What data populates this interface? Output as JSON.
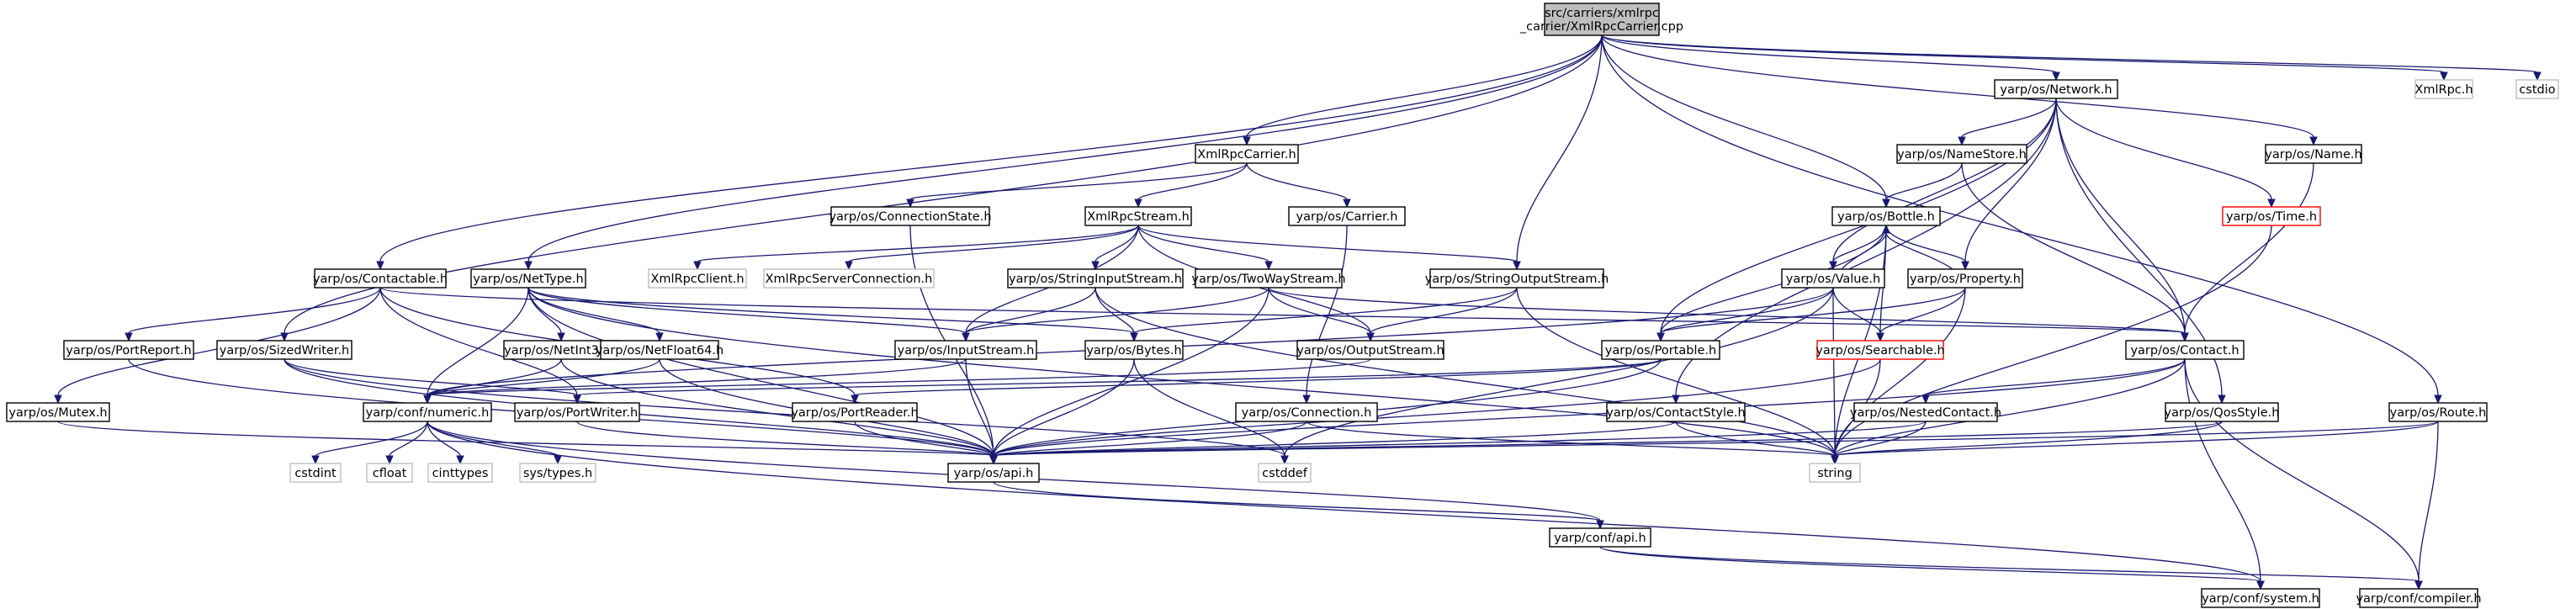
{
  "graph_title": "",
  "colors": {
    "edge": "#191970",
    "focus_fill": "#bfbfbf",
    "missing_border": "#bfbfbf",
    "truncated_border": "#ff0000"
  },
  "nodes": [
    {
      "id": "root",
      "label": "src/carriers/xmlrpc\n_carrier/XmlRpcCarrier.cpp",
      "kind": "focus"
    },
    {
      "id": "network",
      "label": "yarp/os/Network.h",
      "kind": "normal"
    },
    {
      "id": "xmlrpch",
      "label": "XmlRpc.h",
      "kind": "missing"
    },
    {
      "id": "cstdio",
      "label": "cstdio",
      "kind": "missing"
    },
    {
      "id": "xmlrpccarrier",
      "label": "XmlRpcCarrier.h",
      "kind": "normal"
    },
    {
      "id": "namestore",
      "label": "yarp/os/NameStore.h",
      "kind": "normal"
    },
    {
      "id": "name",
      "label": "yarp/os/Name.h",
      "kind": "normal"
    },
    {
      "id": "connstate",
      "label": "yarp/os/ConnectionState.h",
      "kind": "normal"
    },
    {
      "id": "xmlrpcstream",
      "label": "XmlRpcStream.h",
      "kind": "normal"
    },
    {
      "id": "carrier",
      "label": "yarp/os/Carrier.h",
      "kind": "normal"
    },
    {
      "id": "bottle",
      "label": "yarp/os/Bottle.h",
      "kind": "normal"
    },
    {
      "id": "time",
      "label": "yarp/os/Time.h",
      "kind": "truncated"
    },
    {
      "id": "contactable",
      "label": "yarp/os/Contactable.h",
      "kind": "normal"
    },
    {
      "id": "nettype",
      "label": "yarp/os/NetType.h",
      "kind": "normal"
    },
    {
      "id": "xmlrpcclient",
      "label": "XmlRpcClient.h",
      "kind": "missing"
    },
    {
      "id": "xmlrpcserverconn",
      "label": "XmlRpcServerConnection.h",
      "kind": "missing"
    },
    {
      "id": "stringinputstream",
      "label": "yarp/os/StringInputStream.h",
      "kind": "normal"
    },
    {
      "id": "twowaystream",
      "label": "yarp/os/TwoWayStream.h",
      "kind": "normal"
    },
    {
      "id": "stringoutputstream",
      "label": "yarp/os/StringOutputStream.h",
      "kind": "normal"
    },
    {
      "id": "value",
      "label": "yarp/os/Value.h",
      "kind": "normal"
    },
    {
      "id": "property",
      "label": "yarp/os/Property.h",
      "kind": "normal"
    },
    {
      "id": "portreport",
      "label": "yarp/os/PortReport.h",
      "kind": "normal"
    },
    {
      "id": "sizedwriter",
      "label": "yarp/os/SizedWriter.h",
      "kind": "normal"
    },
    {
      "id": "netint32",
      "label": "yarp/os/NetInt32.h",
      "kind": "normal"
    },
    {
      "id": "netfloat64",
      "label": "yarp/os/NetFloat64.h",
      "kind": "normal"
    },
    {
      "id": "inputstream",
      "label": "yarp/os/InputStream.h",
      "kind": "normal"
    },
    {
      "id": "bytes",
      "label": "yarp/os/Bytes.h",
      "kind": "normal"
    },
    {
      "id": "outputstream",
      "label": "yarp/os/OutputStream.h",
      "kind": "normal"
    },
    {
      "id": "portable",
      "label": "yarp/os/Portable.h",
      "kind": "normal"
    },
    {
      "id": "searchable",
      "label": "yarp/os/Searchable.h",
      "kind": "truncated"
    },
    {
      "id": "contact",
      "label": "yarp/os/Contact.h",
      "kind": "normal"
    },
    {
      "id": "mutex",
      "label": "yarp/os/Mutex.h",
      "kind": "normal"
    },
    {
      "id": "numeric",
      "label": "yarp/conf/numeric.h",
      "kind": "normal"
    },
    {
      "id": "portwriter",
      "label": "yarp/os/PortWriter.h",
      "kind": "normal"
    },
    {
      "id": "portreader",
      "label": "yarp/os/PortReader.h",
      "kind": "normal"
    },
    {
      "id": "connection",
      "label": "yarp/os/Connection.h",
      "kind": "normal"
    },
    {
      "id": "contactstyle",
      "label": "yarp/os/ContactStyle.h",
      "kind": "normal"
    },
    {
      "id": "nestedcontact",
      "label": "yarp/os/NestedContact.h",
      "kind": "normal"
    },
    {
      "id": "qosstyle",
      "label": "yarp/os/QosStyle.h",
      "kind": "normal"
    },
    {
      "id": "route",
      "label": "yarp/os/Route.h",
      "kind": "normal"
    },
    {
      "id": "cstdint",
      "label": "cstdint",
      "kind": "missing"
    },
    {
      "id": "cfloat",
      "label": "cfloat",
      "kind": "missing"
    },
    {
      "id": "cinttypes",
      "label": "cinttypes",
      "kind": "missing"
    },
    {
      "id": "systypes",
      "label": "sys/types.h",
      "kind": "missing"
    },
    {
      "id": "osapi",
      "label": "yarp/os/api.h",
      "kind": "normal"
    },
    {
      "id": "cstddef",
      "label": "cstddef",
      "kind": "missing"
    },
    {
      "id": "string",
      "label": "string",
      "kind": "missing"
    },
    {
      "id": "confapi",
      "label": "yarp/conf/api.h",
      "kind": "normal"
    },
    {
      "id": "confsystem",
      "label": "yarp/conf/system.h",
      "kind": "normal"
    },
    {
      "id": "confcompiler",
      "label": "yarp/conf/compiler.h",
      "kind": "normal"
    }
  ],
  "edges": [
    [
      "root",
      "network"
    ],
    [
      "root",
      "xmlrpch"
    ],
    [
      "root",
      "cstdio"
    ],
    [
      "root",
      "xmlrpccarrier"
    ],
    [
      "root",
      "name"
    ],
    [
      "root",
      "bottle"
    ],
    [
      "root",
      "contactable"
    ],
    [
      "root",
      "nettype"
    ],
    [
      "root",
      "stringoutputstream"
    ],
    [
      "root",
      "sizedwriter"
    ],
    [
      "root",
      "route"
    ],
    [
      "network",
      "namestore"
    ],
    [
      "network",
      "time"
    ],
    [
      "network",
      "value"
    ],
    [
      "network",
      "property"
    ],
    [
      "network",
      "portable"
    ],
    [
      "network",
      "contact"
    ],
    [
      "network",
      "qosstyle"
    ],
    [
      "network",
      "contactstyle"
    ],
    [
      "xmlrpccarrier",
      "connstate"
    ],
    [
      "xmlrpccarrier",
      "xmlrpcstream"
    ],
    [
      "xmlrpccarrier",
      "carrier"
    ],
    [
      "namestore",
      "bottle"
    ],
    [
      "namestore",
      "contact"
    ],
    [
      "name",
      "contact"
    ],
    [
      "connstate",
      "osapi"
    ],
    [
      "carrier",
      "connection"
    ],
    [
      "xmlrpcstream",
      "xmlrpcclient"
    ],
    [
      "xmlrpcstream",
      "xmlrpcserverconn"
    ],
    [
      "xmlrpcstream",
      "stringinputstream"
    ],
    [
      "xmlrpcstream",
      "twowaystream"
    ],
    [
      "xmlrpcstream",
      "stringoutputstream"
    ],
    [
      "xmlrpcstream",
      "inputstream"
    ],
    [
      "xmlrpcstream",
      "outputstream"
    ],
    [
      "bottle",
      "value"
    ],
    [
      "bottle",
      "property"
    ],
    [
      "bottle",
      "portable"
    ],
    [
      "bottle",
      "searchable"
    ],
    [
      "bottle",
      "string"
    ],
    [
      "time",
      "string"
    ],
    [
      "contactable",
      "portreport"
    ],
    [
      "contactable",
      "mutex"
    ],
    [
      "contactable",
      "contact"
    ],
    [
      "contactable",
      "portwriter"
    ],
    [
      "contactable",
      "portreader"
    ],
    [
      "nettype",
      "netint32"
    ],
    [
      "nettype",
      "netfloat64"
    ],
    [
      "nettype",
      "numeric"
    ],
    [
      "nettype",
      "bytes"
    ],
    [
      "nettype",
      "inputstream"
    ],
    [
      "nettype",
      "osapi"
    ],
    [
      "nettype",
      "string"
    ],
    [
      "stringinputstream",
      "inputstream"
    ],
    [
      "stringinputstream",
      "bytes"
    ],
    [
      "stringinputstream",
      "string"
    ],
    [
      "twowaystream",
      "inputstream"
    ],
    [
      "twowaystream",
      "outputstream"
    ],
    [
      "twowaystream",
      "contact"
    ],
    [
      "twowaystream",
      "osapi"
    ],
    [
      "stringoutputstream",
      "outputstream"
    ],
    [
      "stringoutputstream",
      "bytes"
    ],
    [
      "stringoutputstream",
      "string"
    ],
    [
      "value",
      "bottle"
    ],
    [
      "value",
      "portable"
    ],
    [
      "value",
      "searchable"
    ],
    [
      "value",
      "string"
    ],
    [
      "value",
      "cstddef"
    ],
    [
      "value",
      "numeric"
    ],
    [
      "property",
      "bottle"
    ],
    [
      "property",
      "portable"
    ],
    [
      "property",
      "searchable"
    ],
    [
      "property",
      "string"
    ],
    [
      "portreport",
      "osapi"
    ],
    [
      "sizedwriter",
      "portwriter"
    ],
    [
      "sizedwriter",
      "osapi"
    ],
    [
      "sizedwriter",
      "cstddef"
    ],
    [
      "netint32",
      "numeric"
    ],
    [
      "netint32",
      "osapi"
    ],
    [
      "netfloat64",
      "numeric"
    ],
    [
      "netfloat64",
      "osapi"
    ],
    [
      "inputstream",
      "osapi"
    ],
    [
      "inputstream",
      "numeric"
    ],
    [
      "bytes",
      "osapi"
    ],
    [
      "bytes",
      "cstddef"
    ],
    [
      "outputstream",
      "numeric"
    ],
    [
      "portable",
      "portwriter"
    ],
    [
      "portable",
      "portreader"
    ],
    [
      "portable",
      "osapi"
    ],
    [
      "searchable",
      "osapi"
    ],
    [
      "searchable",
      "string"
    ],
    [
      "contact",
      "nestedcontact"
    ],
    [
      "contact",
      "string"
    ],
    [
      "contact",
      "confsystem"
    ],
    [
      "contact",
      "confcompiler"
    ],
    [
      "contact",
      "osapi"
    ],
    [
      "mutex",
      "osapi"
    ],
    [
      "numeric",
      "cstdint"
    ],
    [
      "numeric",
      "cfloat"
    ],
    [
      "numeric",
      "cinttypes"
    ],
    [
      "numeric",
      "systypes"
    ],
    [
      "numeric",
      "confapi"
    ],
    [
      "numeric",
      "confsystem"
    ],
    [
      "portwriter",
      "osapi"
    ],
    [
      "portreader",
      "osapi"
    ],
    [
      "connection",
      "osapi"
    ],
    [
      "connection",
      "string"
    ],
    [
      "contactstyle",
      "osapi"
    ],
    [
      "contactstyle",
      "string"
    ],
    [
      "nestedcontact",
      "osapi"
    ],
    [
      "nestedcontact",
      "string"
    ],
    [
      "qosstyle",
      "osapi"
    ],
    [
      "qosstyle",
      "string"
    ],
    [
      "route",
      "osapi"
    ],
    [
      "route",
      "string"
    ],
    [
      "route",
      "confcompiler"
    ],
    [
      "osapi",
      "confapi"
    ],
    [
      "confapi",
      "confsystem"
    ],
    [
      "confapi",
      "confcompiler"
    ]
  ]
}
